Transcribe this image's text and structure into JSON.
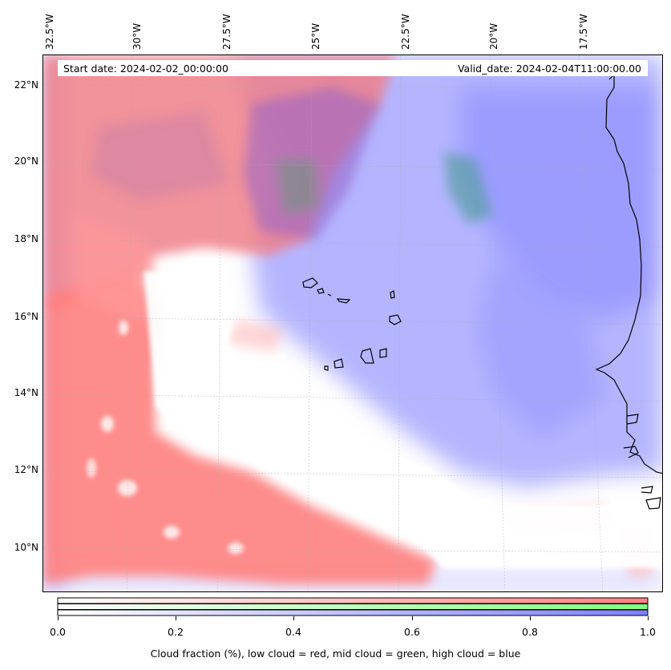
{
  "map": {
    "longitude_labels": [
      "32.5°W",
      "30°W",
      "27.5°W",
      "25°W",
      "22.5°W",
      "20°W",
      "17.5°W"
    ],
    "latitude_labels": [
      "22°N",
      "20°N",
      "18°N",
      "16°N",
      "14°N",
      "12°N",
      "10°N"
    ],
    "start_date": "Start date: 2024-02-02_00:00:00",
    "valid_date": "Valid_date: 2024-02-04T11:00:00.00"
  },
  "legend": {
    "ticks": [
      "0.0",
      "0.2",
      "0.4",
      "0.6",
      "0.8",
      "1.0"
    ],
    "label": "Cloud fraction (%), low cloud = red, mid cloud = green, high cloud = blue",
    "colors": {
      "low": "#ff7f7f",
      "mid": "#7fff7f",
      "high": "#7f7fff"
    }
  }
}
